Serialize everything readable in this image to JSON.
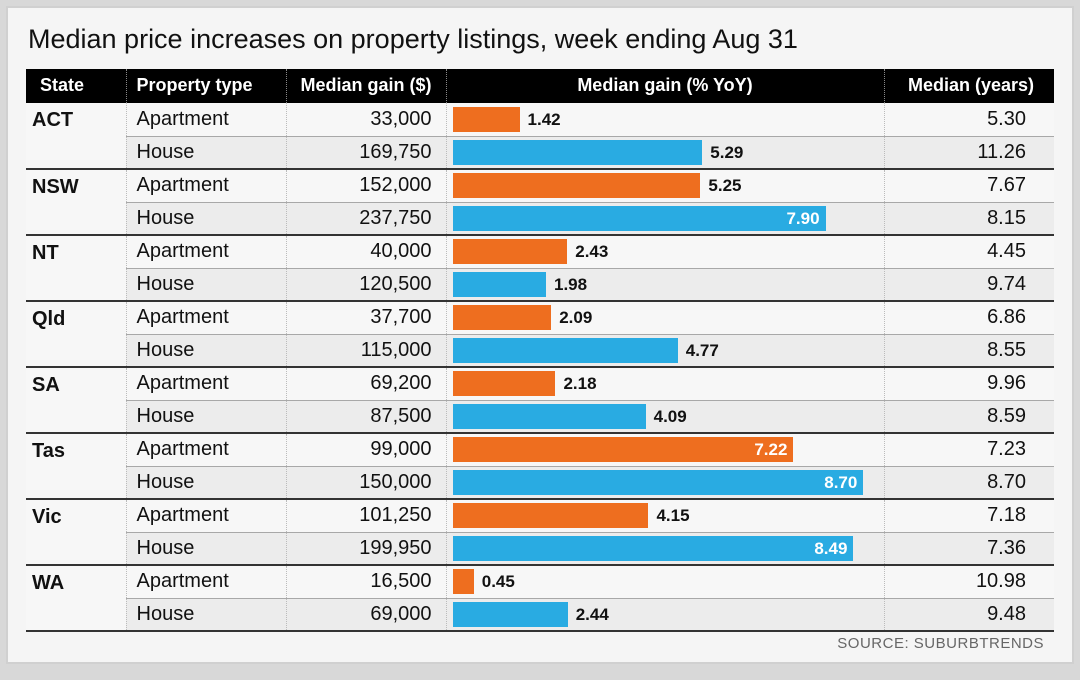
{
  "title": "Median price increases on property listings, week ending Aug 31",
  "source": "SOURCE: SUBURBTRENDS",
  "headers": {
    "state": "State",
    "type": "Property type",
    "gain_dollar": "Median gain ($)",
    "gain_yoy": "Median gain (% YoY)",
    "years": "Median (years)"
  },
  "chart": {
    "bar_max_value": 9.0,
    "colors": {
      "apartment": "#ee6e1f",
      "house": "#29abe2",
      "header_bg": "#000000",
      "header_fg": "#ffffff",
      "row_even": "#ececec",
      "row_odd": "#f7f7f7",
      "grid": "#a8a8a8",
      "text": "#111111"
    },
    "label_inside_threshold": 7.0,
    "title_fontsize": 27,
    "header_fontsize": 18,
    "cell_fontsize": 20,
    "barlabel_fontsize": 17
  },
  "states": [
    {
      "name": "ACT",
      "rows": [
        {
          "type": "Apartment",
          "gain": "33,000",
          "yoy": 1.42,
          "yoy_label": "1.42",
          "years": "5.30"
        },
        {
          "type": "House",
          "gain": "169,750",
          "yoy": 5.29,
          "yoy_label": "5.29",
          "years": "11.26"
        }
      ]
    },
    {
      "name": "NSW",
      "rows": [
        {
          "type": "Apartment",
          "gain": "152,000",
          "yoy": 5.25,
          "yoy_label": "5.25",
          "years": "7.67"
        },
        {
          "type": "House",
          "gain": "237,750",
          "yoy": 7.9,
          "yoy_label": "7.90",
          "years": "8.15"
        }
      ]
    },
    {
      "name": "NT",
      "rows": [
        {
          "type": "Apartment",
          "gain": "40,000",
          "yoy": 2.43,
          "yoy_label": "2.43",
          "years": "4.45"
        },
        {
          "type": "House",
          "gain": "120,500",
          "yoy": 1.98,
          "yoy_label": "1.98",
          "years": "9.74"
        }
      ]
    },
    {
      "name": "Qld",
      "rows": [
        {
          "type": "Apartment",
          "gain": "37,700",
          "yoy": 2.09,
          "yoy_label": "2.09",
          "years": "6.86"
        },
        {
          "type": "House",
          "gain": "115,000",
          "yoy": 4.77,
          "yoy_label": "4.77",
          "years": "8.55"
        }
      ]
    },
    {
      "name": "SA",
      "rows": [
        {
          "type": "Apartment",
          "gain": "69,200",
          "yoy": 2.18,
          "yoy_label": "2.18",
          "years": "9.96"
        },
        {
          "type": "House",
          "gain": "87,500",
          "yoy": 4.09,
          "yoy_label": "4.09",
          "years": "8.59"
        }
      ]
    },
    {
      "name": "Tas",
      "rows": [
        {
          "type": "Apartment",
          "gain": "99,000",
          "yoy": 7.22,
          "yoy_label": "7.22",
          "years": "7.23"
        },
        {
          "type": "House",
          "gain": "150,000",
          "yoy": 8.7,
          "yoy_label": "8.70",
          "years": "8.70"
        }
      ]
    },
    {
      "name": "Vic",
      "rows": [
        {
          "type": "Apartment",
          "gain": "101,250",
          "yoy": 4.15,
          "yoy_label": "4.15",
          "years": "7.18"
        },
        {
          "type": "House",
          "gain": "199,950",
          "yoy": 8.49,
          "yoy_label": "8.49",
          "years": "7.36"
        }
      ]
    },
    {
      "name": "WA",
      "rows": [
        {
          "type": "Apartment",
          "gain": "16,500",
          "yoy": 0.45,
          "yoy_label": "0.45",
          "years": "10.98"
        },
        {
          "type": "House",
          "gain": "69,000",
          "yoy": 2.44,
          "yoy_label": "2.44",
          "years": "9.48"
        }
      ]
    }
  ]
}
